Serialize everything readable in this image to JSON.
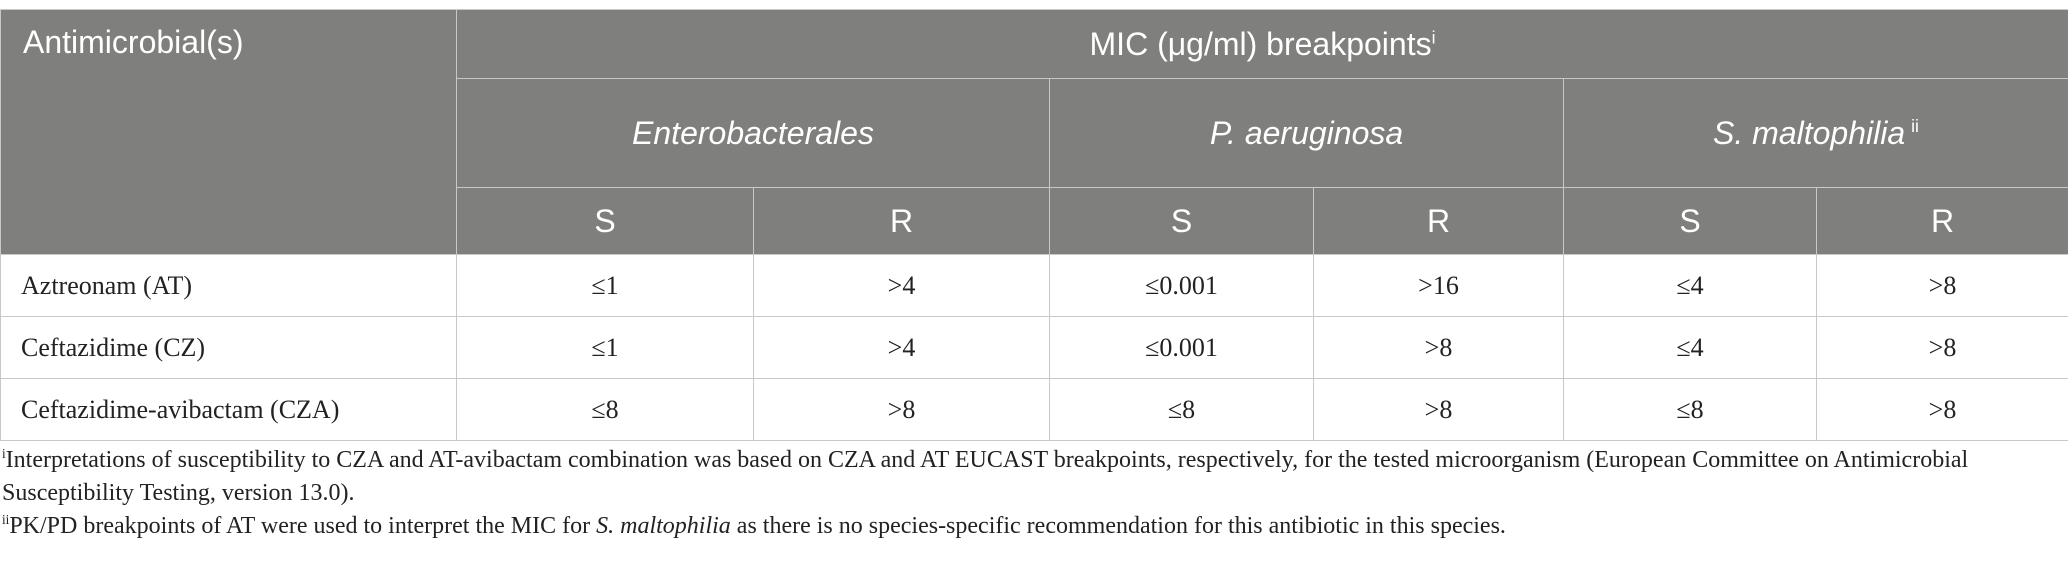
{
  "table": {
    "corner_label": "Antimicrobial(s)",
    "group_title": "MIC (μg/ml) breakpoints",
    "group_title_marker": "i",
    "organisms": [
      {
        "name": "Enterobacterales",
        "marker": ""
      },
      {
        "name": "P. aeruginosa",
        "marker": ""
      },
      {
        "name": "S. maltophilia",
        "marker": "ii"
      }
    ],
    "sr_labels": [
      "S",
      "R",
      "S",
      "R",
      "S",
      "R"
    ],
    "rows": [
      {
        "drug": "Aztreonam (AT)",
        "values": [
          "≤1",
          ">4",
          "≤0.001",
          ">16",
          "≤4",
          ">8"
        ]
      },
      {
        "drug": "Ceftazidime (CZ)",
        "values": [
          "≤1",
          ">4",
          "≤0.001",
          ">8",
          "≤4",
          ">8"
        ]
      },
      {
        "drug": "Ceftazidime-avibactam (CZA)",
        "values": [
          "≤8",
          ">8",
          "≤8",
          ">8",
          "≤8",
          ">8"
        ]
      }
    ]
  },
  "footnotes": [
    {
      "marker": "i",
      "text": "Interpretations of susceptibility to CZA and AT-avibactam combination was based on CZA and AT EUCAST breakpoints, respectively, for the tested microorganism (European Committee on Antimicrobial Susceptibility Testing, version 13.0)."
    },
    {
      "marker": "ii",
      "text_before": "PK/PD breakpoints of AT were used to interpret the MIC for ",
      "organism": "S. maltophilia",
      "text_after": " as there is no species-specific recommendation for this antibiotic in this species."
    }
  ]
}
